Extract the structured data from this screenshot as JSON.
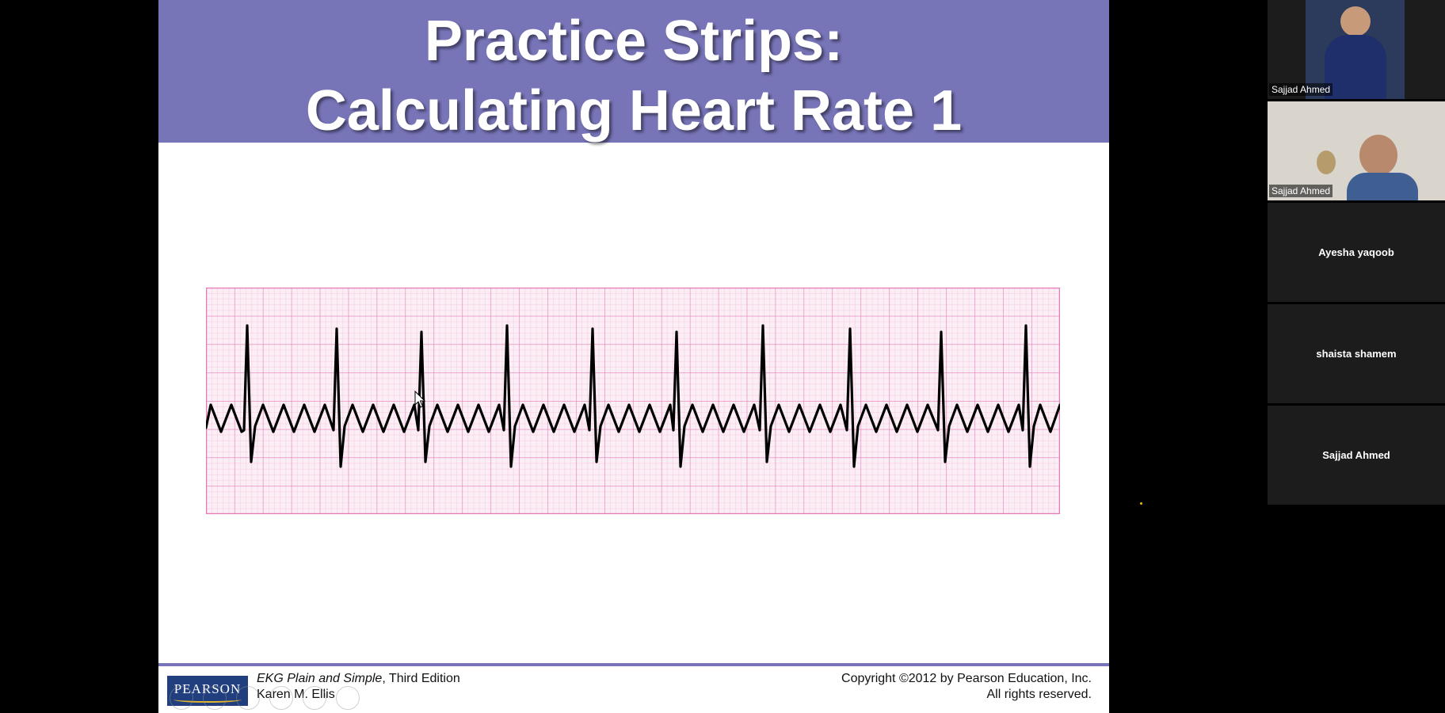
{
  "slide": {
    "title_line1": "Practice Strips:",
    "title_line2": "Calculating Heart Rate 1",
    "book_title": "EKG Plain and Simple",
    "book_edition": ", Third Edition",
    "book_author": "Karen M. Ellis",
    "copyright_line1": "Copyright ©2012 by Pearson Education, Inc.",
    "copyright_line2": "All rights reserved.",
    "logo_text": "PEARSON"
  },
  "participants": [
    {
      "name": "Sajjad Ahmed",
      "video": true
    },
    {
      "name": "Sajjad Ahmed",
      "video": true
    },
    {
      "name": "Ayesha yaqoob",
      "video": false
    },
    {
      "name": "shaista shamem",
      "video": false
    },
    {
      "name": "Sajjad Ahmed",
      "video": false
    }
  ],
  "colors": {
    "title_band": "#7774b7",
    "ecg_paper": "#fbeef5",
    "grid_major": "#e67ab8",
    "grid_minor": "#f3b9da",
    "ecg_trace": "#000000"
  }
}
